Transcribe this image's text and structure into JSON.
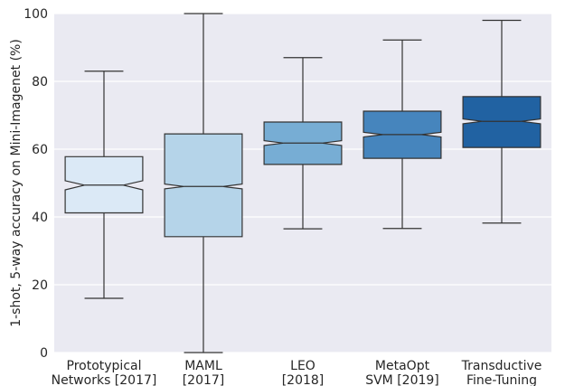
{
  "chart_data": {
    "type": "boxplot",
    "ylabel": "1-shot, 5-way accuracy on Mini-Imagenet (%)",
    "xlabel": "",
    "ylim": [
      0,
      100
    ],
    "yticks": [
      0,
      20,
      40,
      60,
      80,
      100
    ],
    "grid": true,
    "notched": true,
    "categories": [
      [
        "Prototypical",
        "Networks [2017]"
      ],
      [
        "MAML",
        "[2017]"
      ],
      [
        "LEO",
        "[2018]"
      ],
      [
        "MetaOpt",
        "SVM [2019]"
      ],
      [
        "Transductive",
        "Fine-Tuning"
      ]
    ],
    "boxes": [
      {
        "whisker_low": 16.0,
        "q1": 41.2,
        "median": 49.4,
        "q3": 57.8,
        "whisker_high": 83.0,
        "notch_low": 48.0,
        "notch_high": 50.7,
        "color": "#dbe9f6"
      },
      {
        "whisker_low": 0.0,
        "q1": 34.2,
        "median": 49.0,
        "q3": 64.5,
        "whisker_high": 100.0,
        "notch_low": 48.3,
        "notch_high": 49.7,
        "color": "#b5d4e9"
      },
      {
        "whisker_low": 36.5,
        "q1": 55.5,
        "median": 61.8,
        "q3": 68.0,
        "whisker_high": 87.0,
        "notch_low": 61.1,
        "notch_high": 62.5,
        "color": "#77add4"
      },
      {
        "whisker_low": 36.6,
        "q1": 57.3,
        "median": 64.3,
        "q3": 71.2,
        "whisker_high": 92.2,
        "notch_low": 63.6,
        "notch_high": 65.0,
        "color": "#4685bd"
      },
      {
        "whisker_low": 38.2,
        "q1": 60.5,
        "median": 68.2,
        "q3": 75.5,
        "whisker_high": 98.0,
        "notch_low": 67.5,
        "notch_high": 68.9,
        "color": "#2162a2"
      }
    ],
    "colors": {
      "plot_background": "#eaeaf2",
      "grid": "#ffffff",
      "edge": "#333333",
      "text": "#262626"
    }
  }
}
